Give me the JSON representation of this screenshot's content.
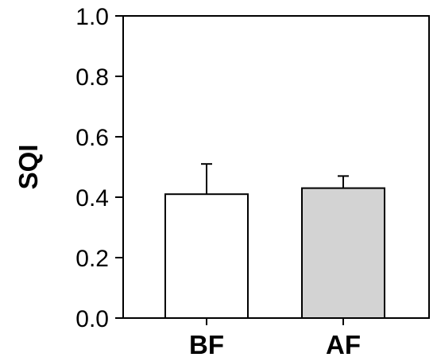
{
  "chart_data": {
    "type": "bar",
    "title": "",
    "xlabel": "",
    "ylabel": "SQI",
    "ylim": [
      0,
      1.0
    ],
    "yticks": [
      0.0,
      0.2,
      0.4,
      0.6,
      0.8,
      1.0
    ],
    "ytick_labels": [
      "0.0",
      "0.2",
      "0.4",
      "0.6",
      "0.8",
      "1.0"
    ],
    "categories": [
      "BF",
      "AF"
    ],
    "values": [
      0.41,
      0.43
    ],
    "errors": [
      0.1,
      0.04
    ],
    "colors": [
      "#ffffff",
      "#d3d3d3"
    ],
    "grid": false,
    "legend": false
  }
}
